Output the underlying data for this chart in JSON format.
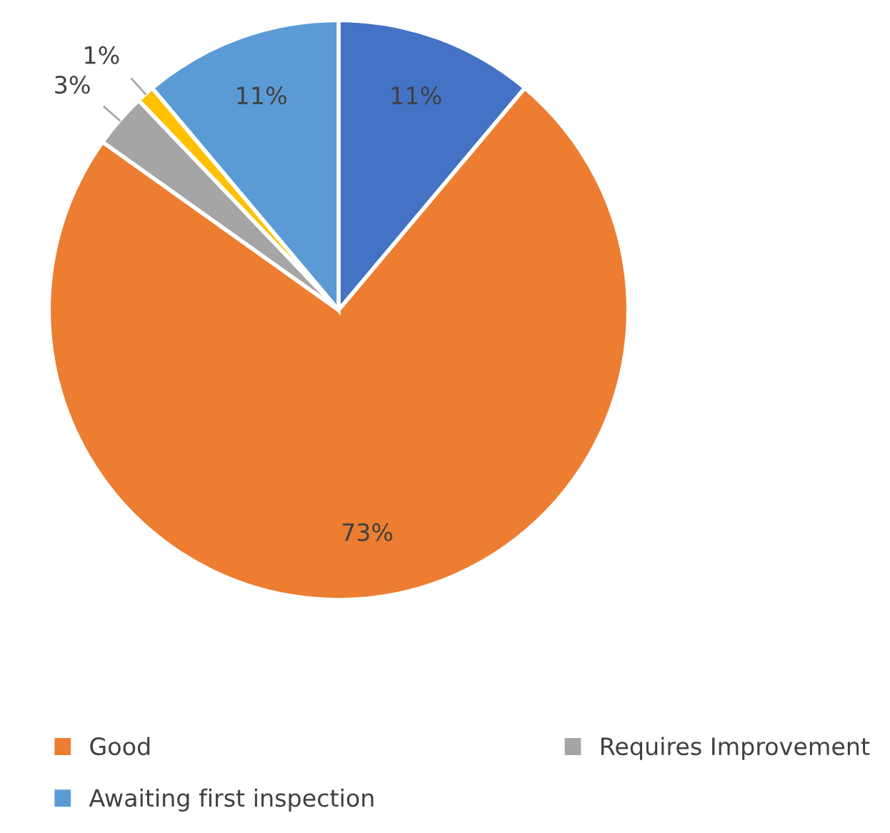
{
  "chart_data": {
    "type": "pie",
    "categories": [
      null,
      "Good",
      "Requires Improvement",
      null,
      "Awaiting first inspection"
    ],
    "values": [
      11,
      73,
      3,
      1,
      11
    ],
    "colors": [
      "#4472c4",
      "#ed7d31",
      "#a5a5a5",
      "#ffc000",
      "#5b9bd5"
    ],
    "value_labels": [
      "11%",
      "73%",
      "3%",
      "1%",
      "11%"
    ],
    "legend": "bottom"
  }
}
